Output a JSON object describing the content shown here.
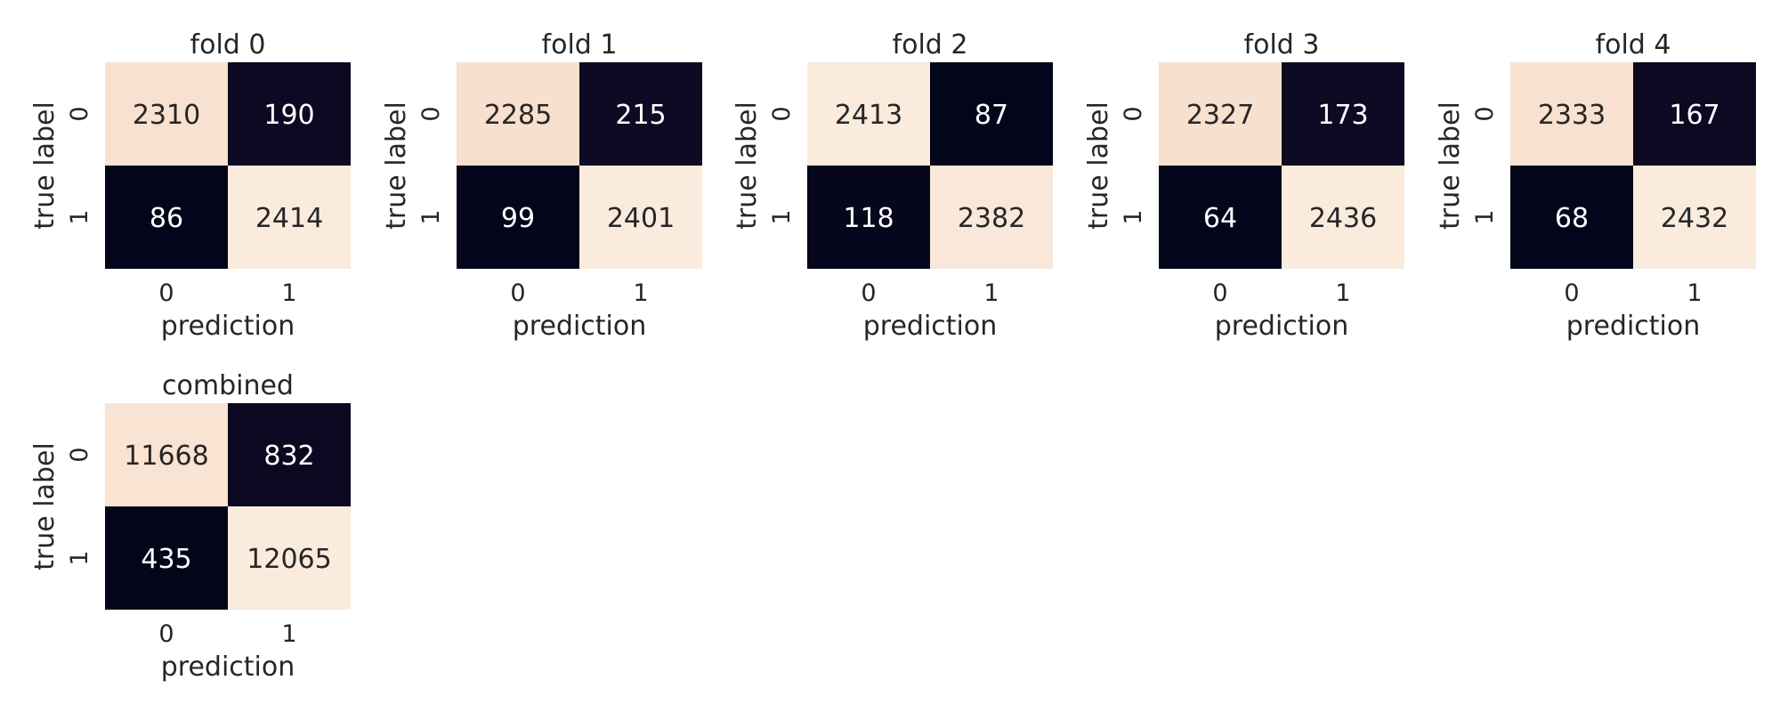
{
  "chart_data": [
    {
      "type": "heatmap",
      "title": "fold 0",
      "xlabel": "prediction",
      "ylabel": "true label",
      "x_ticks": [
        "0",
        "1"
      ],
      "y_ticks": [
        "0",
        "1"
      ],
      "matrix": [
        [
          2310,
          190
        ],
        [
          86,
          2414
        ]
      ],
      "colormap": "rocket",
      "colorbar": false
    },
    {
      "type": "heatmap",
      "title": "fold 1",
      "xlabel": "prediction",
      "ylabel": "true label",
      "x_ticks": [
        "0",
        "1"
      ],
      "y_ticks": [
        "0",
        "1"
      ],
      "matrix": [
        [
          2285,
          215
        ],
        [
          99,
          2401
        ]
      ],
      "colormap": "rocket",
      "colorbar": false
    },
    {
      "type": "heatmap",
      "title": "fold 2",
      "xlabel": "prediction",
      "ylabel": "true label",
      "x_ticks": [
        "0",
        "1"
      ],
      "y_ticks": [
        "0",
        "1"
      ],
      "matrix": [
        [
          2413,
          87
        ],
        [
          118,
          2382
        ]
      ],
      "colormap": "rocket",
      "colorbar": false
    },
    {
      "type": "heatmap",
      "title": "fold 3",
      "xlabel": "prediction",
      "ylabel": "true label",
      "x_ticks": [
        "0",
        "1"
      ],
      "y_ticks": [
        "0",
        "1"
      ],
      "matrix": [
        [
          2327,
          173
        ],
        [
          64,
          2436
        ]
      ],
      "colormap": "rocket",
      "colorbar": false
    },
    {
      "type": "heatmap",
      "title": "fold 4",
      "xlabel": "prediction",
      "ylabel": "true label",
      "x_ticks": [
        "0",
        "1"
      ],
      "y_ticks": [
        "0",
        "1"
      ],
      "matrix": [
        [
          2333,
          167
        ],
        [
          68,
          2432
        ]
      ],
      "colormap": "rocket",
      "colorbar": false
    },
    {
      "type": "heatmap",
      "title": "combined",
      "xlabel": "prediction",
      "ylabel": "true label",
      "x_ticks": [
        "0",
        "1"
      ],
      "y_ticks": [
        "0",
        "1"
      ],
      "matrix": [
        [
          11668,
          832
        ],
        [
          435,
          12065
        ]
      ],
      "colormap": "rocket",
      "colorbar": false
    }
  ],
  "colors": {
    "cmap_low": "#03051a",
    "cmap_mid_dark": "#1a0f2e",
    "cmap_high": "#faebdd",
    "cmap_mid_light": "#f6d4bf",
    "text_on_light": "#262626",
    "text_on_dark": "#ffffff",
    "background": "#ffffff"
  }
}
